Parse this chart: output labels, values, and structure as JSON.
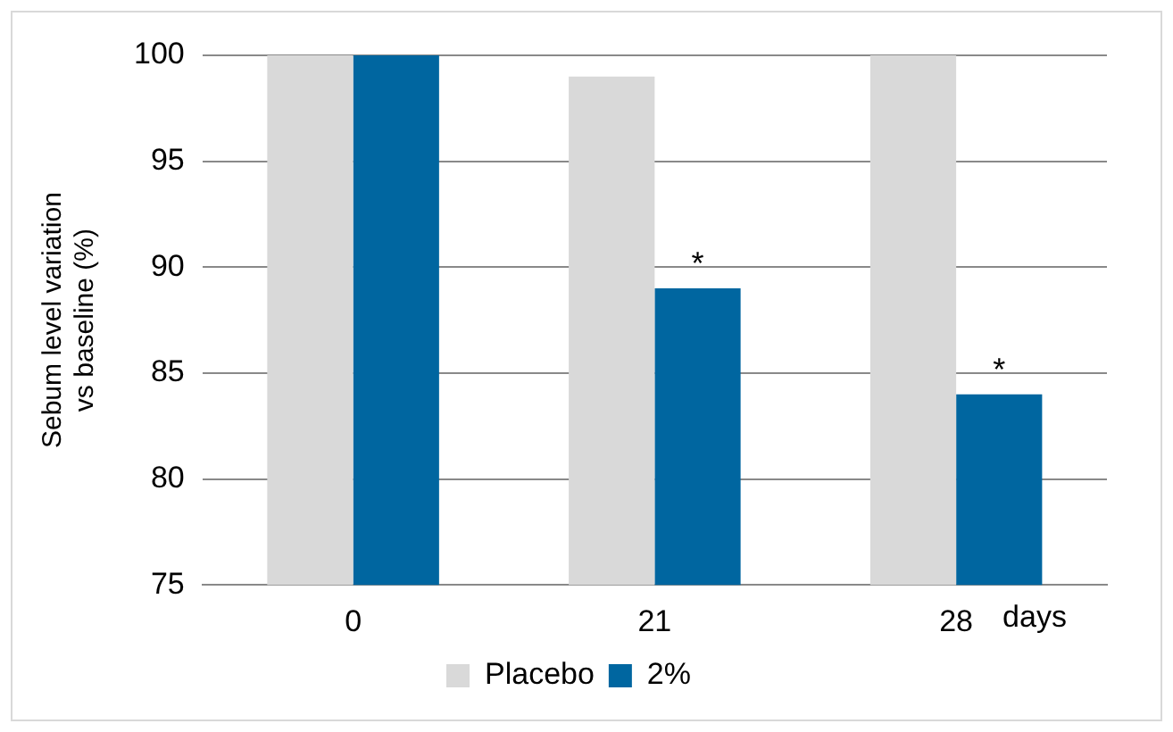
{
  "chart_data": {
    "type": "bar",
    "ylabel": "Sebum level variation\nvs baseline (%)",
    "xlabel": "days",
    "categories": [
      "0",
      "21",
      "28"
    ],
    "series": [
      {
        "name": "Placebo",
        "color": "#d9d9d9",
        "values": [
          100,
          99,
          100
        ]
      },
      {
        "name": "2%",
        "color": "#0066a0",
        "values": [
          100,
          89,
          84
        ]
      }
    ],
    "ylim": [
      75,
      100
    ],
    "yticks": [
      75,
      80,
      85,
      90,
      95,
      100
    ],
    "grid": "y",
    "legend": "bottom",
    "annotations": [
      {
        "text": "*",
        "x": "21",
        "y": 89
      },
      {
        "text": "*",
        "x": "28",
        "y": 84
      }
    ]
  }
}
